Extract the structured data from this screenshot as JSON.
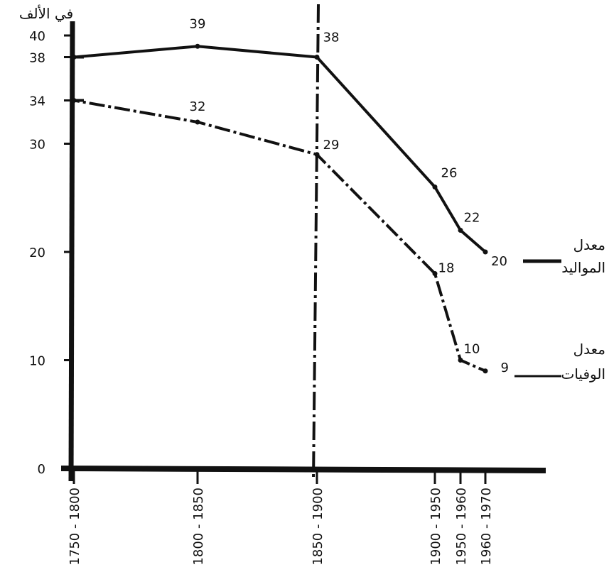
{
  "chart_data": {
    "type": "line",
    "title": "",
    "ylabel": "في الألف",
    "xlabel": "",
    "ylim": [
      0,
      40
    ],
    "yticks": [
      0,
      10,
      20,
      30,
      34,
      38,
      40
    ],
    "x_periods": [
      "1750 - 1800",
      "1800 - 1850",
      "1850 - 1900",
      "1900 - 1950",
      "1950 - 1960",
      "1960 - 1970"
    ],
    "series": [
      {
        "name": "معدل المواليد",
        "legend_value": "20",
        "style": "solid",
        "points": [
          {
            "period": "1750 - 1800",
            "value": 38,
            "label": ""
          },
          {
            "period": "1800 - 1850",
            "value": 39,
            "label": "39"
          },
          {
            "period": "1850 - 1900",
            "value": 38,
            "label": "38"
          },
          {
            "period": "1900 - 1950",
            "value": 26,
            "label": "26"
          },
          {
            "period": "1950 - 1960",
            "value": 22,
            "label": "22"
          },
          {
            "period": "1960 - 1970",
            "value": 20,
            "label": ""
          }
        ]
      },
      {
        "name": "معدل الوفيات",
        "legend_value": "9",
        "style": "dashed",
        "points": [
          {
            "period": "1750 - 1800",
            "value": 34,
            "label": ""
          },
          {
            "period": "1800 - 1850",
            "value": 32,
            "label": "32"
          },
          {
            "period": "1850 - 1900",
            "value": 29,
            "label": "29"
          },
          {
            "period": "1900 - 1950",
            "value": 18,
            "label": "18"
          },
          {
            "period": "1950 - 1960",
            "value": 10,
            "label": "10"
          },
          {
            "period": "1960 - 1970",
            "value": 9,
            "label": ""
          }
        ]
      }
    ],
    "legend_lines": [
      [
        "معدل",
        "المواليد"
      ],
      [
        "معدل",
        "الوفيات"
      ]
    ],
    "legend_placement": "right",
    "grid": false
  }
}
